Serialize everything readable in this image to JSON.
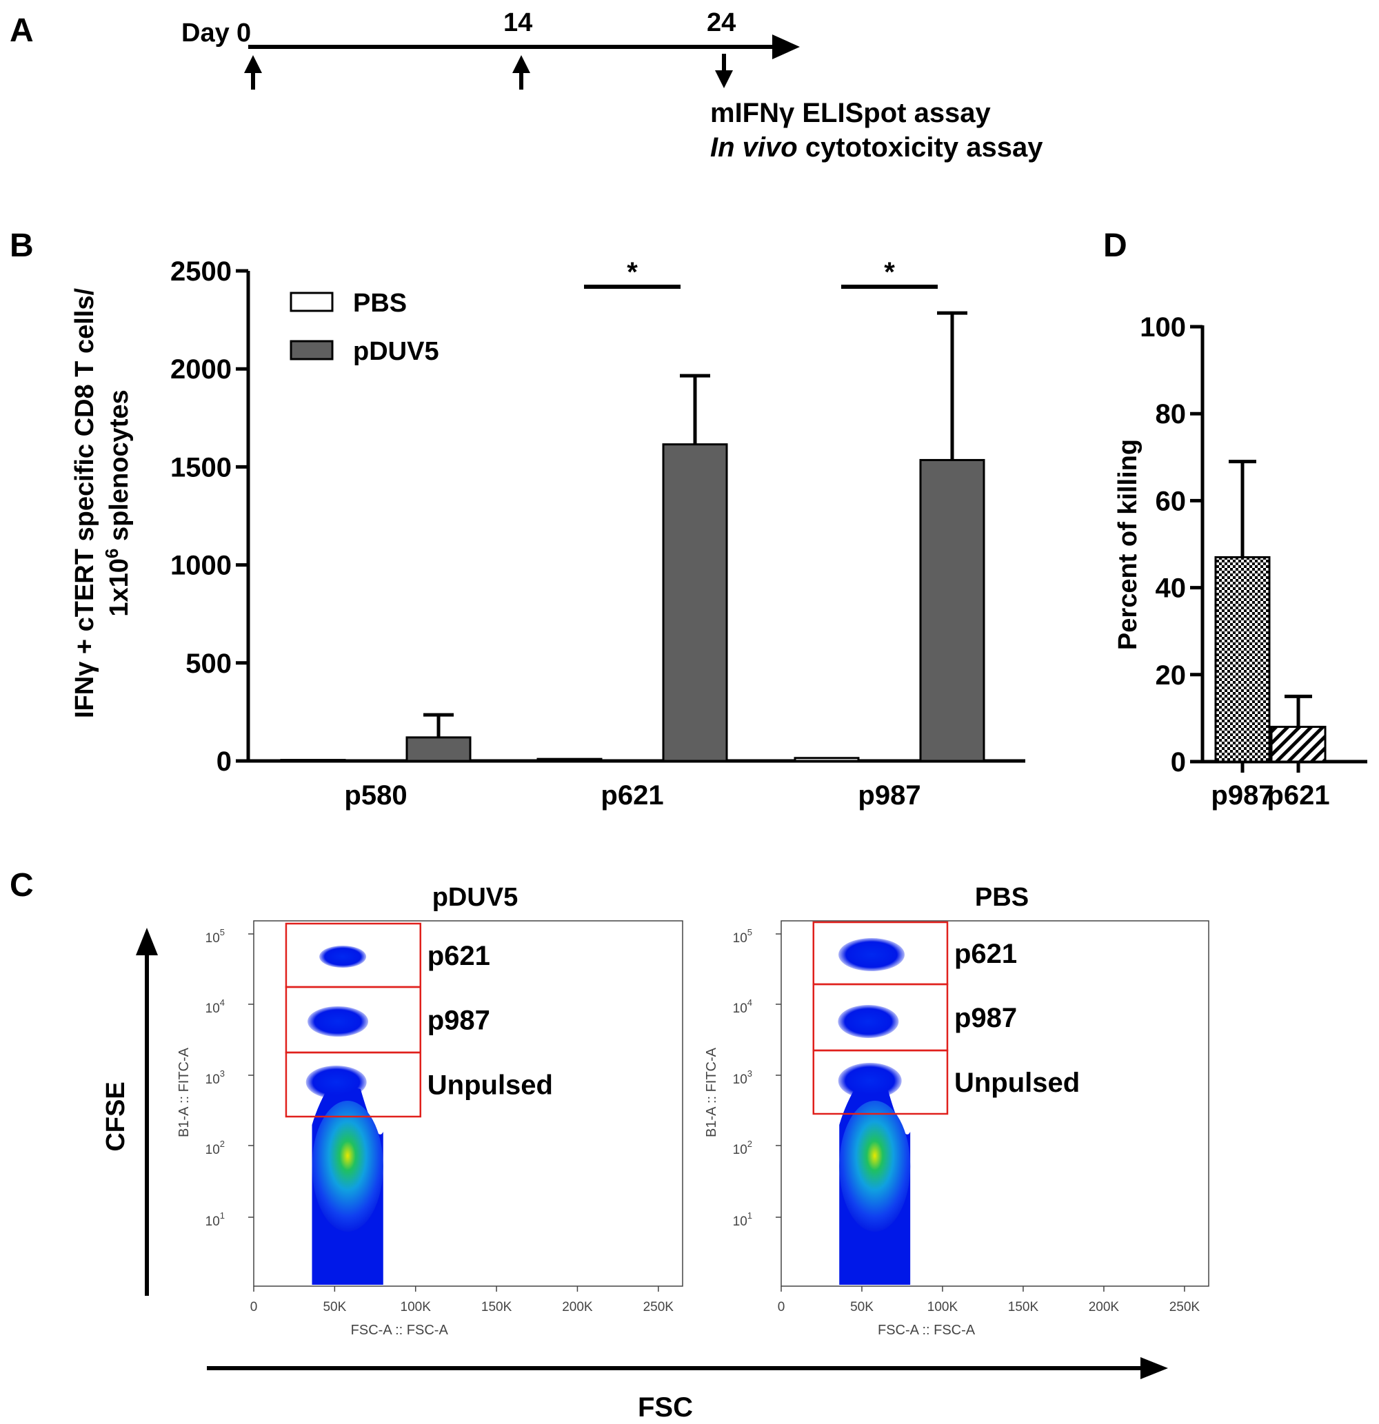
{
  "panels": {
    "a": "A",
    "b": "B",
    "c": "C",
    "d": "D"
  },
  "timeline": {
    "day_label": "Day",
    "days": [
      "0",
      "14",
      "24"
    ],
    "assay_line1": "mIFNγ ELISpot assay",
    "assay_line2_italic": "In vivo",
    "assay_line2_rest": " cytotoxicity assay"
  },
  "chart_data": [
    {
      "id": "B",
      "type": "bar",
      "categories": [
        "p580",
        "p621",
        "p987"
      ],
      "series": [
        {
          "name": "PBS",
          "values": [
            5,
            10,
            15
          ],
          "errors": [
            0,
            0,
            0
          ],
          "color": "#ffffff"
        },
        {
          "name": "pDUV5",
          "values": [
            120,
            1615,
            1535
          ],
          "errors": [
            115,
            350,
            750
          ],
          "color": "#5f5f5f"
        }
      ],
      "ylabel_line1_pre": "IFNγ  + cTERT specific CD8 T cells/",
      "ylabel_line2_pre": "1x10",
      "ylabel_line2_sup": "6",
      "ylabel_line2_post": " splenocytes",
      "yticks": [
        "0",
        "500",
        "1000",
        "1500",
        "2000",
        "2500"
      ],
      "ylim": [
        0,
        2500
      ],
      "significance": [
        {
          "category": "p621",
          "label": "*"
        },
        {
          "category": "p987",
          "label": "*"
        }
      ],
      "legend_position": "top-left",
      "grid": false
    },
    {
      "id": "D",
      "type": "bar",
      "categories": [
        "p987",
        "p621"
      ],
      "values": [
        47,
        8
      ],
      "errors": [
        22,
        7
      ],
      "patterns": [
        "checkerboard",
        "diagonal-hatch"
      ],
      "ylabel": "Percent of killing",
      "yticks": [
        "0",
        "20",
        "40",
        "60",
        "80",
        "100"
      ],
      "ylim": [
        0,
        100
      ],
      "grid": false
    },
    {
      "id": "C",
      "type": "scatter",
      "plots": [
        {
          "title": "pDUV5",
          "gates": [
            "p621",
            "p987",
            "Unpulsed"
          ]
        },
        {
          "title": "PBS",
          "gates": [
            "p621",
            "p987",
            "Unpulsed"
          ]
        }
      ],
      "y_axis_name": "B1-A :: FITC-A",
      "x_axis_name": "FSC-A :: FSC-A",
      "xticks": [
        "0",
        "50K",
        "100K",
        "150K",
        "200K",
        "250K"
      ],
      "yticks": [
        {
          "base": "10",
          "exp": "1"
        },
        {
          "base": "10",
          "exp": "2"
        },
        {
          "base": "10",
          "exp": "3"
        },
        {
          "base": "10",
          "exp": "4"
        },
        {
          "base": "10",
          "exp": "5"
        }
      ],
      "y_scale": "log",
      "outer_y_label": "CFSE",
      "outer_x_label": "FSC"
    }
  ]
}
